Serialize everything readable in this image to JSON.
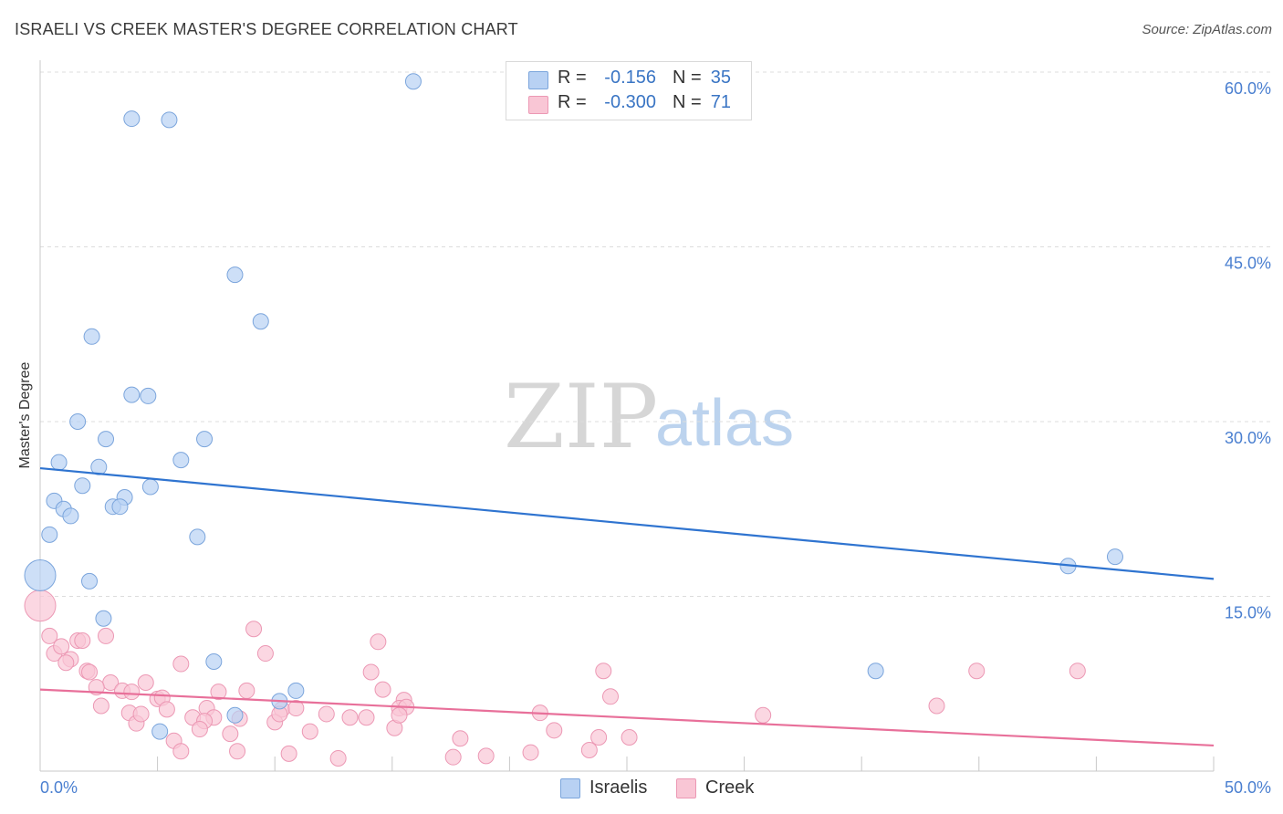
{
  "title": "ISRAELI VS CREEK MASTER'S DEGREE CORRELATION CHART",
  "source": "Source: ZipAtlas.com",
  "watermark": {
    "zip": "ZIP",
    "atlas": "atlas"
  },
  "legend": {
    "rows": [
      {
        "r_label": "R =",
        "r_value": "-0.156",
        "n_label": "N =",
        "n_value": "35"
      },
      {
        "r_label": "R =",
        "r_value": "-0.300",
        "n_label": "N =",
        "n_value": "71"
      }
    ]
  },
  "bottom_legend": [
    "Israelis",
    "Creek"
  ],
  "colors": {
    "israelis_fill": "#b8d1f3",
    "israelis_stroke": "#7ba5dc",
    "israelis_line": "#2f74d0",
    "creek_fill": "#f9c6d5",
    "creek_stroke": "#ec98b4",
    "creek_line": "#e8709a",
    "tick_text": "#4a7fd0",
    "grid": "#dcdcdc"
  },
  "chart_data": {
    "type": "scatter",
    "title": "ISRAELI VS CREEK MASTER'S DEGREE CORRELATION CHART",
    "xlabel": "",
    "ylabel": "Master's Degree",
    "xlim": [
      0,
      50
    ],
    "ylim": [
      0,
      60
    ],
    "x_tick_labels": [
      "0.0%",
      "50.0%"
    ],
    "y_ticks": [
      15,
      30,
      45,
      60
    ],
    "y_tick_labels": [
      "15.0%",
      "30.0%",
      "45.0%",
      "60.0%"
    ],
    "series": [
      {
        "name": "Israelis",
        "r": -0.156,
        "n": 35,
        "trend": {
          "x0": 0,
          "y0": 26.0,
          "x1": 50,
          "y1": 16.5
        },
        "points": [
          [
            15.9,
            59.2
          ],
          [
            3.9,
            56.0
          ],
          [
            5.5,
            55.9
          ],
          [
            8.3,
            42.6
          ],
          [
            9.4,
            38.6
          ],
          [
            2.2,
            37.3
          ],
          [
            3.9,
            32.3
          ],
          [
            4.6,
            32.2
          ],
          [
            1.6,
            30.0
          ],
          [
            2.8,
            28.5
          ],
          [
            7.0,
            28.5
          ],
          [
            6.0,
            26.7
          ],
          [
            0.8,
            26.5
          ],
          [
            2.5,
            26.1
          ],
          [
            1.8,
            24.5
          ],
          [
            4.7,
            24.4
          ],
          [
            0.6,
            23.2
          ],
          [
            3.6,
            23.5
          ],
          [
            3.1,
            22.7
          ],
          [
            3.4,
            22.7
          ],
          [
            1.0,
            22.5
          ],
          [
            1.3,
            21.9
          ],
          [
            0.4,
            20.3
          ],
          [
            6.7,
            20.1
          ],
          [
            0.0,
            16.8
          ],
          [
            2.1,
            16.3
          ],
          [
            45.8,
            18.4
          ],
          [
            43.8,
            17.6
          ],
          [
            2.7,
            13.1
          ],
          [
            7.4,
            9.4
          ],
          [
            35.6,
            8.6
          ],
          [
            10.9,
            6.9
          ],
          [
            10.2,
            6.0
          ],
          [
            8.3,
            4.8
          ],
          [
            5.1,
            3.4
          ]
        ]
      },
      {
        "name": "Creek",
        "r": -0.3,
        "n": 71,
        "trend": {
          "x0": 0,
          "y0": 7.0,
          "x1": 50,
          "y1": 2.2
        },
        "points": [
          [
            0.0,
            14.2
          ],
          [
            0.4,
            11.6
          ],
          [
            1.6,
            11.2
          ],
          [
            1.8,
            11.2
          ],
          [
            2.8,
            11.6
          ],
          [
            0.6,
            10.1
          ],
          [
            0.9,
            10.7
          ],
          [
            1.3,
            9.6
          ],
          [
            1.1,
            9.3
          ],
          [
            2.0,
            8.6
          ],
          [
            2.1,
            8.5
          ],
          [
            9.1,
            12.2
          ],
          [
            9.6,
            10.1
          ],
          [
            14.4,
            11.1
          ],
          [
            6.0,
            9.2
          ],
          [
            14.1,
            8.5
          ],
          [
            24.0,
            8.6
          ],
          [
            39.9,
            8.6
          ],
          [
            44.2,
            8.6
          ],
          [
            3.0,
            7.6
          ],
          [
            4.5,
            7.6
          ],
          [
            2.4,
            7.2
          ],
          [
            3.5,
            6.9
          ],
          [
            3.9,
            6.8
          ],
          [
            7.6,
            6.8
          ],
          [
            8.8,
            6.9
          ],
          [
            14.6,
            7.0
          ],
          [
            5.0,
            6.2
          ],
          [
            5.2,
            6.3
          ],
          [
            2.6,
            5.6
          ],
          [
            3.8,
            5.0
          ],
          [
            5.4,
            5.3
          ],
          [
            7.1,
            5.4
          ],
          [
            10.3,
            5.3
          ],
          [
            10.9,
            5.4
          ],
          [
            15.5,
            6.1
          ],
          [
            15.3,
            5.4
          ],
          [
            15.6,
            5.5
          ],
          [
            24.3,
            6.4
          ],
          [
            38.2,
            5.6
          ],
          [
            4.1,
            4.1
          ],
          [
            4.3,
            4.9
          ],
          [
            6.5,
            4.6
          ],
          [
            7.4,
            4.6
          ],
          [
            8.5,
            4.5
          ],
          [
            10.0,
            4.2
          ],
          [
            12.2,
            4.9
          ],
          [
            13.2,
            4.6
          ],
          [
            13.9,
            4.6
          ],
          [
            15.1,
            3.7
          ],
          [
            21.3,
            5.0
          ],
          [
            30.8,
            4.8
          ],
          [
            7.0,
            4.3
          ],
          [
            6.8,
            3.6
          ],
          [
            8.1,
            3.2
          ],
          [
            11.5,
            3.4
          ],
          [
            17.9,
            2.8
          ],
          [
            21.9,
            3.5
          ],
          [
            23.8,
            2.9
          ],
          [
            25.1,
            2.9
          ],
          [
            5.7,
            2.6
          ],
          [
            6.0,
            1.7
          ],
          [
            8.4,
            1.7
          ],
          [
            10.6,
            1.5
          ],
          [
            12.7,
            1.1
          ],
          [
            17.6,
            1.2
          ],
          [
            19.0,
            1.3
          ],
          [
            20.9,
            1.6
          ],
          [
            23.4,
            1.8
          ],
          [
            10.2,
            4.9
          ],
          [
            15.3,
            4.8
          ]
        ]
      }
    ]
  }
}
